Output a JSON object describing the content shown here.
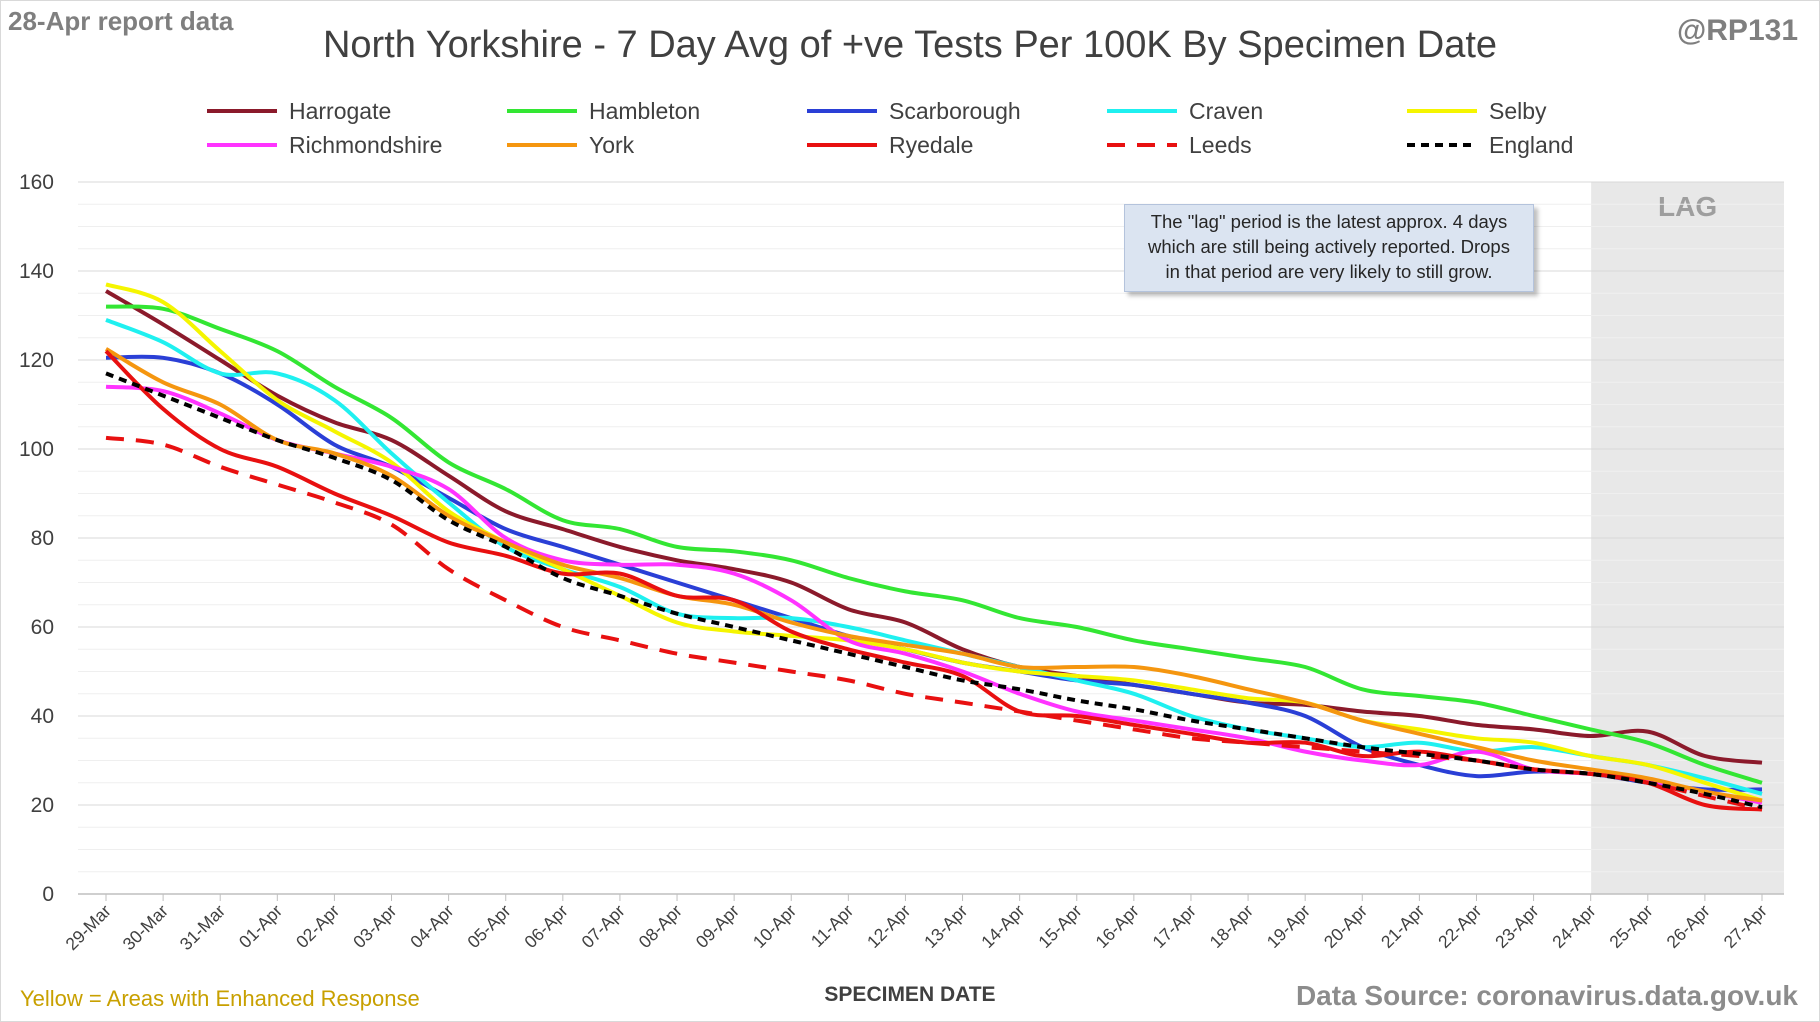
{
  "header": {
    "report_label": "28-Apr report data",
    "handle": "@RP131"
  },
  "footer": {
    "enhanced_note": "Yellow = Areas with Enhanced Response",
    "source": "Data Source: coronavirus.data.gov.uk"
  },
  "note": {
    "lines": [
      "The \"lag\" period is the latest approx. 4 days",
      "which are still being actively reported.  Drops",
      "in that period are very likely to still grow."
    ]
  },
  "chart_data": {
    "type": "line",
    "title": "North Yorkshire - 7 Day Avg of +ve Tests Per 100K By Specimen Date",
    "xlabel": "SPECIMEN DATE",
    "ylabel": "",
    "ylim": [
      0,
      160
    ],
    "yticks": [
      0,
      20,
      40,
      60,
      80,
      100,
      120,
      140,
      160
    ],
    "grid": true,
    "legend_position": "top",
    "lag_region": {
      "from": "24-Apr",
      "to": "27-Apr",
      "label": "LAG"
    },
    "x": [
      "29-Mar",
      "30-Mar",
      "31-Mar",
      "01-Apr",
      "02-Apr",
      "03-Apr",
      "04-Apr",
      "05-Apr",
      "06-Apr",
      "07-Apr",
      "08-Apr",
      "09-Apr",
      "10-Apr",
      "11-Apr",
      "12-Apr",
      "13-Apr",
      "14-Apr",
      "15-Apr",
      "16-Apr",
      "17-Apr",
      "18-Apr",
      "19-Apr",
      "20-Apr",
      "21-Apr",
      "22-Apr",
      "23-Apr",
      "24-Apr",
      "25-Apr",
      "26-Apr",
      "27-Apr"
    ],
    "series": [
      {
        "name": "Harrogate",
        "color": "#8b1a2b",
        "dash": "solid",
        "values": [
          135.5,
          128,
          120,
          112,
          106,
          102,
          94,
          86,
          82,
          78,
          75,
          73,
          70,
          64,
          61,
          55,
          51,
          49,
          47,
          45,
          43,
          42.5,
          41,
          40,
          38,
          37,
          35.5,
          36.5,
          31,
          29.5
        ]
      },
      {
        "name": "Hambleton",
        "color": "#33e633",
        "dash": "solid",
        "values": [
          132,
          131.5,
          127,
          122,
          114,
          107,
          97,
          91,
          84,
          82,
          78,
          77,
          75,
          71,
          68,
          66,
          62,
          60,
          57,
          55,
          53,
          51,
          46,
          44.5,
          43,
          40,
          37,
          34,
          29,
          25
        ]
      },
      {
        "name": "Scarborough",
        "color": "#2a3fd6",
        "dash": "solid",
        "values": [
          120.5,
          120.5,
          117,
          110,
          101,
          96,
          89,
          82,
          78,
          74,
          70,
          66,
          62,
          58,
          55,
          52,
          50,
          48,
          47,
          45,
          43,
          40,
          33,
          29,
          26.5,
          27.5,
          27,
          25,
          23.5,
          23.5
        ]
      },
      {
        "name": "Craven",
        "color": "#1ff0f0",
        "dash": "solid",
        "values": [
          129,
          124,
          117,
          117,
          111,
          99,
          88,
          78,
          73,
          69,
          63,
          62,
          62,
          60,
          57,
          54,
          51,
          48,
          45,
          40,
          37,
          35,
          33,
          34,
          32,
          33,
          31,
          29,
          26,
          22.5
        ]
      },
      {
        "name": "Selby",
        "color": "#f5f500",
        "dash": "solid",
        "values": [
          137,
          133,
          122,
          111,
          104,
          97,
          86,
          79,
          73,
          67,
          61,
          59,
          58,
          57,
          55,
          52,
          50,
          49,
          48,
          46,
          44,
          43,
          39,
          37,
          35,
          34,
          31,
          29,
          25,
          21
        ]
      },
      {
        "name": "Richmondshire",
        "color": "#ff33ff",
        "dash": "solid",
        "values": [
          114,
          113,
          108,
          102,
          99,
          96,
          91,
          80,
          75,
          74,
          74,
          72,
          66,
          57,
          54,
          50,
          45,
          41,
          39,
          37,
          35,
          32,
          30,
          29,
          32,
          28,
          27,
          25.5,
          23,
          20.5
        ]
      },
      {
        "name": "York",
        "color": "#f5960f",
        "dash": "solid",
        "values": [
          122.5,
          115,
          110,
          102,
          99,
          94,
          85,
          79,
          74,
          71,
          67,
          65,
          61,
          58,
          56,
          54,
          51,
          51,
          51,
          49,
          46,
          43,
          39,
          36,
          33,
          30,
          28,
          26,
          23,
          21
        ]
      },
      {
        "name": "Ryedale",
        "color": "#e81010",
        "dash": "solid",
        "values": [
          122,
          109,
          100,
          96,
          90,
          85,
          79,
          76,
          72,
          72,
          67,
          66,
          59,
          55,
          52,
          49,
          41,
          40,
          38,
          36,
          34,
          34,
          31,
          32,
          30,
          28,
          27,
          25,
          20,
          19
        ]
      },
      {
        "name": "Leeds",
        "color": "#e81010",
        "dash": "dashed",
        "values": [
          102.5,
          101,
          96,
          92,
          88,
          83,
          73,
          66,
          60,
          57,
          54,
          52,
          50,
          48,
          45,
          43,
          41,
          39,
          37,
          35,
          34,
          33,
          32,
          31,
          30,
          28,
          27,
          25,
          22,
          19
        ]
      },
      {
        "name": "England",
        "color": "#000000",
        "dash": "dotted",
        "values": [
          117,
          112,
          107,
          102,
          98,
          93,
          84,
          78,
          71,
          67,
          63,
          60,
          57,
          54,
          51,
          48,
          46,
          43.5,
          41.5,
          39,
          37,
          35,
          33,
          31.5,
          30,
          28,
          27,
          25,
          22.5,
          19.5
        ]
      }
    ]
  }
}
